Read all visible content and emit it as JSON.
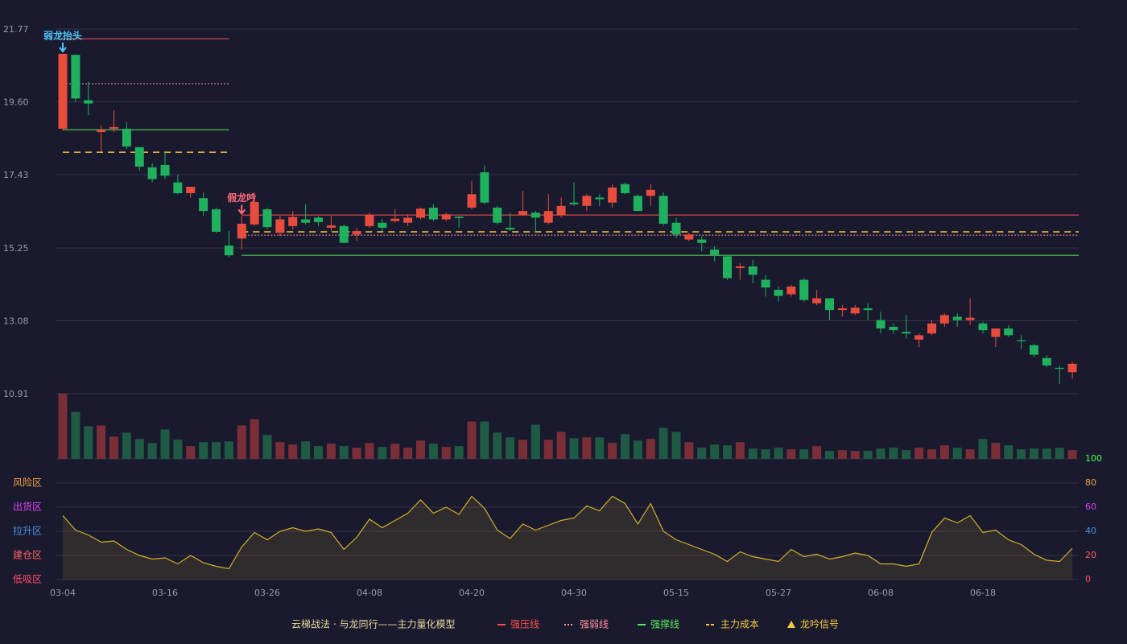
{
  "chart_data": {
    "type": "candlestick",
    "categories": [
      "03-04",
      null,
      null,
      null,
      null,
      null,
      null,
      null,
      "03-16",
      null,
      null,
      null,
      null,
      null,
      null,
      null,
      "03-26",
      null,
      null,
      null,
      null,
      null,
      null,
      null,
      "04-08",
      null,
      null,
      null,
      null,
      null,
      null,
      null,
      "04-20",
      null,
      null,
      null,
      null,
      null,
      null,
      null,
      "04-30",
      null,
      null,
      null,
      null,
      null,
      null,
      null,
      "05-15",
      null,
      null,
      null,
      null,
      null,
      null,
      null,
      "05-27",
      null,
      null,
      null,
      null,
      null,
      null,
      null,
      "06-08",
      null,
      null,
      null,
      null,
      null,
      null,
      null,
      "06-18",
      null,
      null,
      null,
      null,
      null,
      null,
      null
    ],
    "open": [
      18.8,
      21.0,
      19.65,
      18.7,
      18.8,
      18.8,
      18.25,
      17.65,
      17.72,
      17.2,
      16.88,
      16.73,
      16.4,
      15.32,
      15.53,
      15.95,
      16.4,
      15.7,
      15.9,
      16.1,
      16.15,
      15.85,
      15.9,
      15.65,
      15.9,
      16.0,
      16.05,
      16.0,
      16.15,
      16.45,
      16.1,
      16.18,
      16.45,
      17.5,
      16.45,
      15.85,
      16.22,
      16.3,
      16.0,
      16.22,
      16.6,
      16.5,
      16.75,
      16.6,
      17.15,
      16.8,
      16.8,
      16.8,
      16.0,
      15.5,
      15.5,
      15.2,
      15.0,
      14.65,
      14.7,
      14.3,
      14.0,
      13.87,
      14.3,
      13.6,
      13.75,
      13.4,
      13.3,
      13.45,
      13.1,
      12.9,
      12.75,
      12.52,
      12.7,
      13.0,
      13.2,
      13.1,
      13.0,
      12.6,
      12.85,
      12.5,
      12.35,
      11.97,
      11.68,
      11.55
    ],
    "high": [
      21.03,
      21.0,
      20.2,
      18.9,
      19.35,
      19.0,
      18.25,
      17.77,
      18.1,
      17.43,
      17.07,
      16.9,
      16.45,
      15.75,
      16.2,
      16.9,
      16.45,
      16.2,
      16.35,
      16.55,
      16.2,
      16.2,
      15.95,
      15.85,
      16.3,
      16.1,
      16.4,
      16.25,
      16.45,
      16.55,
      16.3,
      16.2,
      17.25,
      17.7,
      16.5,
      16.3,
      16.95,
      16.35,
      16.85,
      16.75,
      17.2,
      16.85,
      16.85,
      17.15,
      17.2,
      16.85,
      17.15,
      16.9,
      16.15,
      15.7,
      15.6,
      15.3,
      15.05,
      14.8,
      14.9,
      14.45,
      14.1,
      14.15,
      14.35,
      14.0,
      13.75,
      13.55,
      13.55,
      13.6,
      13.35,
      13.0,
      13.25,
      12.7,
      13.1,
      13.3,
      13.3,
      13.75,
      13.05,
      12.85,
      12.95,
      12.65,
      12.4,
      12.05,
      11.75,
      11.85
    ],
    "low": [
      18.75,
      19.6,
      19.2,
      18.1,
      18.7,
      18.2,
      17.55,
      17.2,
      17.3,
      16.85,
      16.75,
      16.2,
      15.7,
      14.97,
      15.2,
      15.9,
      15.8,
      15.6,
      15.8,
      15.95,
      15.9,
      15.75,
      15.4,
      15.45,
      15.85,
      15.75,
      16.0,
      15.9,
      16.1,
      16.05,
      16.05,
      15.85,
      16.4,
      16.55,
      15.95,
      15.75,
      16.2,
      15.7,
      15.95,
      16.15,
      16.5,
      16.35,
      16.5,
      16.45,
      16.85,
      16.35,
      16.5,
      15.9,
      15.55,
      15.45,
      15.15,
      14.85,
      14.3,
      14.3,
      14.2,
      13.8,
      13.65,
      13.8,
      13.65,
      13.55,
      13.1,
      13.2,
      13.25,
      13.1,
      12.7,
      12.7,
      12.55,
      12.3,
      12.65,
      12.9,
      12.9,
      12.95,
      12.7,
      12.3,
      12.6,
      12.25,
      12.0,
      11.7,
      11.2,
      11.35
    ],
    "close": [
      21.03,
      19.7,
      19.55,
      18.77,
      18.85,
      18.27,
      17.67,
      17.3,
      17.4,
      16.88,
      17.07,
      16.35,
      15.73,
      15.03,
      15.97,
      16.62,
      15.87,
      16.1,
      16.17,
      16.0,
      16.02,
      15.92,
      15.4,
      15.75,
      16.22,
      15.85,
      16.12,
      16.15,
      16.42,
      16.1,
      16.25,
      16.14,
      16.85,
      16.6,
      16.0,
      15.8,
      16.35,
      16.15,
      16.35,
      16.5,
      16.55,
      16.8,
      16.7,
      17.05,
      16.88,
      16.35,
      16.98,
      15.97,
      15.65,
      15.65,
      15.4,
      15.05,
      14.35,
      14.7,
      14.45,
      14.07,
      13.82,
      14.1,
      13.7,
      13.75,
      13.4,
      13.45,
      13.47,
      13.4,
      12.85,
      12.8,
      12.7,
      12.65,
      13.0,
      13.25,
      13.1,
      13.17,
      12.8,
      12.85,
      12.65,
      12.47,
      12.07,
      11.75,
      11.65,
      11.8
    ],
    "up_color": "#e84c3d",
    "down_color": "#1fb15e",
    "volume": [
      82,
      59,
      41,
      42,
      28,
      33,
      25,
      20,
      37,
      24,
      16,
      21,
      21,
      22,
      42,
      50,
      30,
      21,
      18,
      22,
      16,
      19,
      16,
      14,
      20,
      15,
      19,
      14,
      23,
      19,
      15,
      16,
      47,
      47,
      33,
      27,
      24,
      43,
      24,
      34,
      26,
      27,
      27,
      20,
      31,
      23,
      25,
      39,
      34,
      21,
      14,
      18,
      17,
      21,
      13,
      12,
      14,
      12,
      12,
      16,
      10,
      11,
      10,
      10,
      13,
      14,
      11,
      14,
      12,
      17,
      14,
      12,
      25,
      20,
      17,
      12,
      13,
      13,
      14,
      11
    ],
    "volume_up_color": "#7a2f38",
    "volume_down_color": "#1f5a44",
    "ylim": [
      10.91,
      21.77
    ],
    "yticks": [
      21.77,
      {
        "value": 19.6,
        "label": "19.60"
      },
      17.43,
      15.25,
      13.08,
      10.91
    ],
    "grid": true,
    "levels": [
      {
        "name": "强压线",
        "color": "#ff5050",
        "dash": "solid",
        "values": [
          21.48,
          21.48,
          21.48,
          21.48,
          21.48,
          21.48,
          21.48,
          21.48,
          21.48,
          21.48,
          21.48,
          21.48,
          21.48,
          21.48,
          16.23,
          16.23,
          16.23,
          16.23,
          16.23,
          16.23,
          16.23,
          16.23,
          16.23,
          16.23,
          16.23,
          16.23,
          16.23,
          16.23,
          16.23,
          16.23,
          16.23,
          16.23,
          16.23,
          16.23,
          16.23,
          16.23,
          16.23,
          16.23,
          16.23,
          16.23,
          16.23,
          16.23,
          16.23,
          16.23,
          16.23,
          16.23,
          16.23,
          16.23,
          16.23,
          16.23,
          16.23,
          16.23,
          16.23,
          16.23,
          16.23,
          16.23,
          16.23,
          16.23,
          16.23,
          16.23,
          16.23,
          16.23,
          16.23,
          16.23,
          16.23,
          16.23,
          16.23,
          16.23,
          16.23,
          16.23,
          16.23,
          16.23,
          16.23,
          16.23,
          16.23,
          16.23,
          16.23,
          16.23,
          16.23,
          16.23
        ]
      },
      {
        "name": "强弱线",
        "color": "#ff8fa3",
        "dash": "dotted",
        "values": [
          20.14,
          20.14,
          20.14,
          20.14,
          20.14,
          20.14,
          20.14,
          20.14,
          20.14,
          20.14,
          20.14,
          20.14,
          20.14,
          20.14,
          15.63,
          15.63,
          15.63,
          15.63,
          15.63,
          15.63,
          15.63,
          15.63,
          15.63,
          15.63,
          15.63,
          15.63,
          15.63,
          15.63,
          15.63,
          15.63,
          15.63,
          15.63,
          15.63,
          15.63,
          15.63,
          15.63,
          15.63,
          15.63,
          15.63,
          15.63,
          15.63,
          15.63,
          15.63,
          15.63,
          15.63,
          15.63,
          15.63,
          15.63,
          15.63,
          15.63,
          15.63,
          15.63,
          15.63,
          15.63,
          15.63,
          15.63,
          15.63,
          15.63,
          15.63,
          15.63,
          15.63,
          15.63,
          15.63,
          15.63,
          15.63,
          15.63,
          15.63,
          15.63,
          15.63,
          15.63,
          15.63,
          15.63,
          15.63,
          15.63,
          15.63,
          15.63,
          15.63,
          15.63,
          15.63,
          15.63
        ]
      },
      {
        "name": "强撑线",
        "color": "#5ee85e",
        "dash": "solid",
        "values": [
          18.77,
          18.77,
          18.77,
          18.77,
          18.77,
          18.77,
          18.77,
          18.77,
          18.77,
          18.77,
          18.77,
          18.77,
          18.77,
          18.77,
          15.03,
          15.03,
          15.03,
          15.03,
          15.03,
          15.03,
          15.03,
          15.03,
          15.03,
          15.03,
          15.03,
          15.03,
          15.03,
          15.03,
          15.03,
          15.03,
          15.03,
          15.03,
          15.03,
          15.03,
          15.03,
          15.03,
          15.03,
          15.03,
          15.03,
          15.03,
          15.03,
          15.03,
          15.03,
          15.03,
          15.03,
          15.03,
          15.03,
          15.03,
          15.03,
          15.03,
          15.03,
          15.03,
          15.03,
          15.03,
          15.03,
          15.03,
          15.03,
          15.03,
          15.03,
          15.03,
          15.03,
          15.03,
          15.03,
          15.03,
          15.03,
          15.03,
          15.03,
          15.03,
          15.03,
          15.03,
          15.03,
          15.03,
          15.03,
          15.03,
          15.03,
          15.03,
          15.03,
          15.03,
          15.03,
          15.03
        ]
      },
      {
        "name": "主力成本",
        "color": "#f5c842",
        "dash": "dashed",
        "values": [
          18.1,
          18.1,
          18.1,
          18.1,
          18.1,
          18.1,
          18.1,
          18.1,
          18.1,
          18.1,
          18.1,
          18.1,
          18.1,
          18.1,
          15.73,
          15.73,
          15.73,
          15.73,
          15.73,
          15.73,
          15.73,
          15.73,
          15.73,
          15.73,
          15.73,
          15.73,
          15.73,
          15.73,
          15.73,
          15.73,
          15.73,
          15.73,
          15.73,
          15.73,
          15.73,
          15.73,
          15.73,
          15.73,
          15.73,
          15.73,
          15.73,
          15.73,
          15.73,
          15.73,
          15.73,
          15.73,
          15.73,
          15.73,
          15.73,
          15.73,
          15.73,
          15.73,
          15.73,
          15.73,
          15.73,
          15.73,
          15.73,
          15.73,
          15.73,
          15.73,
          15.73,
          15.73,
          15.73,
          15.73,
          15.73,
          15.73,
          15.73,
          15.73,
          15.73,
          15.73,
          15.73,
          15.73,
          15.73,
          15.73,
          15.73,
          15.73,
          15.73,
          15.73,
          15.73,
          15.73
        ]
      }
    ],
    "signals": [
      {
        "text": "弱龙抬头",
        "index": 0,
        "color": "#4fc3f7"
      },
      {
        "text": "假龙吟",
        "index": 14,
        "color": "#ff6b7a"
      }
    ],
    "signal_legend": {
      "name": "龙吟信号",
      "color": "#f5c842"
    },
    "legend_title": "云梯战法 · 与龙同行——主力量化模型",
    "indicator": {
      "color": "#d4b02a",
      "values": [
        53,
        41,
        37,
        31,
        32,
        25,
        20,
        17,
        18,
        13,
        20,
        14,
        11,
        9,
        27,
        39,
        33,
        40,
        43,
        40,
        42,
        39,
        25,
        35,
        50,
        43,
        49,
        55,
        66,
        55,
        60,
        54,
        69,
        59,
        41,
        34,
        46,
        41,
        45,
        49,
        51,
        61,
        57,
        69,
        63,
        46,
        63,
        40,
        33,
        29,
        25,
        21,
        15,
        23,
        19,
        17,
        15,
        25,
        19,
        21,
        17,
        19,
        22,
        20,
        13,
        13,
        11,
        13,
        39,
        51,
        47,
        53,
        39,
        41,
        33,
        29,
        21,
        16,
        15,
        26
      ],
      "ylim": [
        0,
        100
      ],
      "yticks": [
        0,
        20,
        40,
        60,
        80,
        100
      ],
      "ytick_colors": [
        "#ff4d6d",
        "#ff6060",
        "#4a90e2",
        "#e040fb",
        "#f0a040",
        "#4cff4c"
      ],
      "zones": [
        {
          "name": "风险区",
          "value": 80,
          "color": "#f0a040"
        },
        {
          "name": "出货区",
          "value": 60,
          "color": "#e040fb"
        },
        {
          "name": "拉升区",
          "value": 40,
          "color": "#4a90e2"
        },
        {
          "name": "建仓区",
          "value": 20,
          "color": "#ff6060"
        },
        {
          "name": "低吸区",
          "value": 0,
          "color": "#ff4d6d"
        }
      ]
    }
  }
}
